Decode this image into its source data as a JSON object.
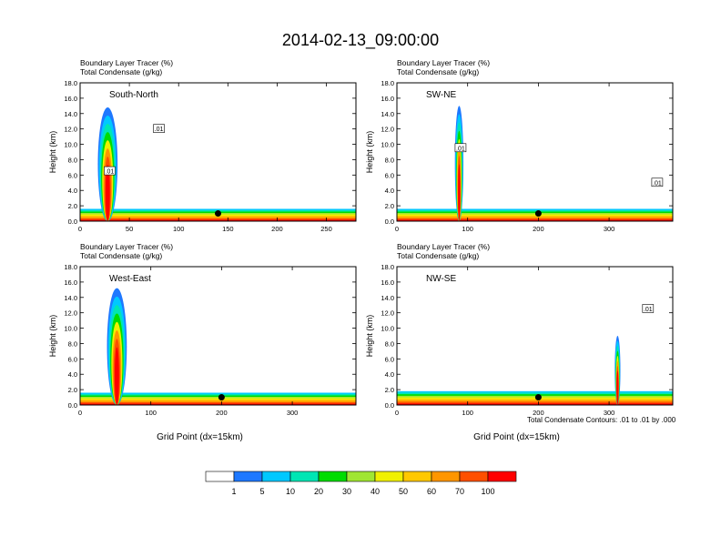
{
  "figure": {
    "title": "2014-02-13_09:00:00",
    "panel_label_1": "Boundary Layer Tracer   (%)",
    "panel_label_2": "Total Condensate   (g/kg)",
    "ylabel": "Height (km)",
    "xlabel": "Grid Point (dx=15km)",
    "contour_note": "Total Condensate Contours: .01 to .01 by .000",
    "contour_tag": ".01"
  },
  "colorbar": {
    "colors": [
      "#ffffff",
      "#1e78ff",
      "#00c8ff",
      "#00e6b4",
      "#00dc00",
      "#a0e632",
      "#f0f000",
      "#ffc800",
      "#ff9600",
      "#ff5000",
      "#ff0000"
    ],
    "labels": [
      "1",
      "5",
      "10",
      "20",
      "30",
      "40",
      "50",
      "60",
      "70",
      "100"
    ]
  },
  "chart_data": [
    {
      "type": "heatmap",
      "name": "South-North",
      "xlim": [
        0,
        280
      ],
      "ylim": [
        0,
        18
      ],
      "xticks": [
        0,
        50,
        100,
        150,
        200,
        250
      ],
      "yticks": [
        0.0,
        2.0,
        4.0,
        6.0,
        8.0,
        10.0,
        12.0,
        14.0,
        16.0,
        18.0
      ],
      "surface_tracer_top_km": 1.6,
      "plume": {
        "center_x": 28,
        "half_width": 10,
        "top_km": 14.8
      },
      "marker": {
        "x": 140,
        "y_km": 1.0
      },
      "contour_labels": [
        {
          "x": 80,
          "y_km": 12.0
        },
        {
          "x": 30,
          "y_km": 6.5
        }
      ]
    },
    {
      "type": "heatmap",
      "name": "SW-NE",
      "xlim": [
        0,
        390
      ],
      "ylim": [
        0,
        18
      ],
      "xticks": [
        0,
        100,
        200,
        300
      ],
      "yticks": [
        0.0,
        2.0,
        4.0,
        6.0,
        8.0,
        10.0,
        12.0,
        14.0,
        16.0,
        18.0
      ],
      "surface_tracer_top_km": 1.6,
      "plume": {
        "center_x": 88,
        "half_width": 6,
        "top_km": 15.0
      },
      "marker": {
        "x": 200,
        "y_km": 1.0
      },
      "contour_labels": [
        {
          "x": 90,
          "y_km": 9.5
        },
        {
          "x": 368,
          "y_km": 5.0
        }
      ]
    },
    {
      "type": "heatmap",
      "name": "West-East",
      "xlim": [
        0,
        390
      ],
      "ylim": [
        0,
        18
      ],
      "xticks": [
        0,
        100,
        200,
        300
      ],
      "yticks": [
        0.0,
        2.0,
        4.0,
        6.0,
        8.0,
        10.0,
        12.0,
        14.0,
        16.0,
        18.0
      ],
      "surface_tracer_top_km": 1.6,
      "plume": {
        "center_x": 52,
        "half_width": 14,
        "top_km": 15.2
      },
      "marker": {
        "x": 200,
        "y_km": 1.0
      },
      "contour_labels": []
    },
    {
      "type": "heatmap",
      "name": "NW-SE",
      "xlim": [
        0,
        390
      ],
      "ylim": [
        0,
        18
      ],
      "xticks": [
        0,
        100,
        200,
        300
      ],
      "yticks": [
        0.0,
        2.0,
        4.0,
        6.0,
        8.0,
        10.0,
        12.0,
        14.0,
        16.0,
        18.0
      ],
      "surface_tracer_top_km": 1.8,
      "plume": {
        "center_x": 312,
        "half_width": 4,
        "top_km": 9.0
      },
      "marker": {
        "x": 200,
        "y_km": 1.0
      },
      "contour_labels": [
        {
          "x": 355,
          "y_km": 12.5
        }
      ]
    }
  ]
}
